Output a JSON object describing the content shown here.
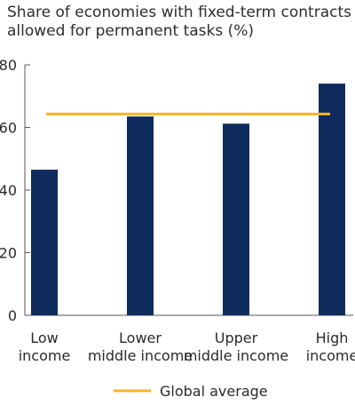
{
  "chart_data": {
    "type": "bar",
    "title_lines": [
      "Share of economies with fixed-term contracts",
      "allowed for permanent tasks (%)"
    ],
    "categories": [
      [
        "Low",
        "income"
      ],
      [
        "Lower",
        "middle income"
      ],
      [
        "Upper",
        "middle income"
      ],
      [
        "High",
        "income"
      ]
    ],
    "values": [
      46.5,
      63.5,
      61.2,
      74
    ],
    "reference_line": {
      "name": "Global average",
      "value": 64.3
    },
    "ylim": [
      0,
      80
    ],
    "yticks": [
      0,
      20,
      40,
      60,
      80
    ],
    "grid": false,
    "legend_position": "bottom",
    "colors": {
      "bar": "#0f2a5c",
      "reference": "#f4b523",
      "axis": "#555555"
    }
  }
}
